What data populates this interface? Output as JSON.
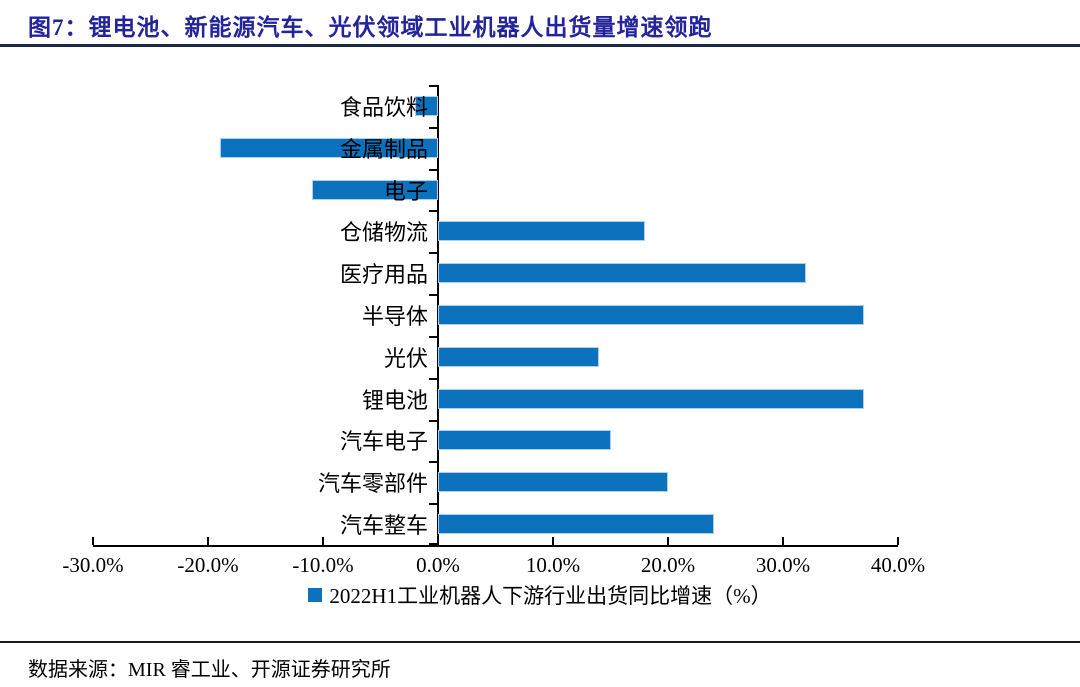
{
  "figure": {
    "title": "图7：锂电池、新能源汽车、光伏领域工业机器人出货量增速领跑",
    "source": "数据来源：MIR 睿工业、开源证券研究所"
  },
  "colors": {
    "bar": "#0d72bd",
    "bar_border": "#aed0ec",
    "title": "#23239b",
    "title_rule": "#1b2a4a",
    "axis": "#000000"
  },
  "chart_data": {
    "type": "bar",
    "orientation": "horizontal",
    "title": "图7：锂电池、新能源汽车、光伏领域工业机器人出货量增速领跑",
    "categories": [
      "食品饮料",
      "金属制品",
      "电子",
      "仓储物流",
      "医疗用品",
      "半导体",
      "光伏",
      "锂电池",
      "汽车电子",
      "汽车零部件",
      "汽车整车"
    ],
    "values": [
      -2,
      -19,
      -11,
      18,
      32,
      37,
      14,
      37,
      15,
      20,
      24
    ],
    "value_unit": "%",
    "xlim": [
      -30,
      40
    ],
    "x_tick_values": [
      -30,
      -20,
      -10,
      0,
      10,
      20,
      30,
      40
    ],
    "x_tick_labels": [
      "-30.0%",
      "-20.0%",
      "-10.0%",
      "0.0%",
      "10.0%",
      "20.0%",
      "30.0%",
      "40.0%"
    ],
    "grid": false,
    "legend_position": "bottom",
    "legend": [
      "2022H1工业机器人下游行业出货同比增速（%）"
    ]
  }
}
